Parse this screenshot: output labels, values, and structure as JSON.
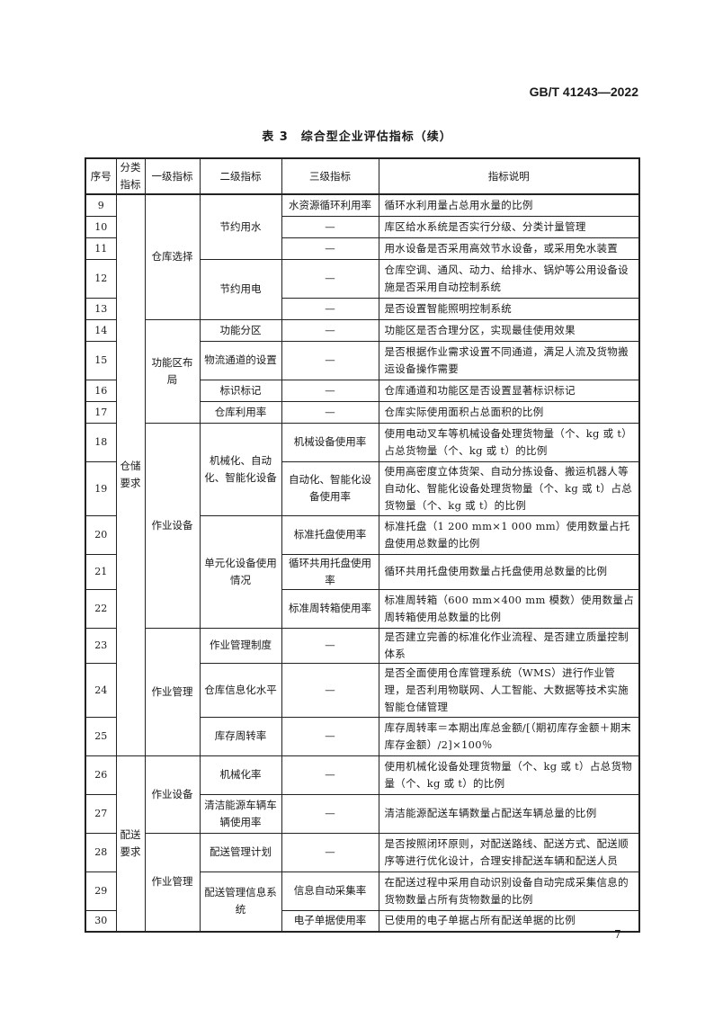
{
  "header": {
    "standard": "GB/T 41243—2022"
  },
  "table": {
    "title": "表 3　综合型企业评估指标（续）",
    "headers": [
      "序号",
      "分类指标",
      "一级指标",
      "二级指标",
      "三级指标",
      "指标说明"
    ],
    "categories": [
      "仓储要求",
      "配送要求"
    ],
    "level1": [
      "仓库选择",
      "功能区布局",
      "作业设备",
      "作业管理",
      "作业设备",
      "作业管理"
    ],
    "level2": [
      "节约用水",
      "节约用电",
      "功能分区",
      "物流通道的设置",
      "标识标记",
      "仓库利用率",
      "机械化、自动化、智能化设备",
      "单元化设备使用情况",
      "作业管理制度",
      "仓库信息化水平",
      "库存周转率",
      "机械化率",
      "清洁能源车辆车辆使用率",
      "配送管理计划",
      "配送管理信息系统"
    ],
    "rows": [
      {
        "no": "9",
        "l3": "水资源循环利用率",
        "desc": "循环水利用量占总用水量的比例"
      },
      {
        "no": "10",
        "l3": "—",
        "desc": "库区给水系统是否实行分级、分类计量管理"
      },
      {
        "no": "11",
        "l3": "—",
        "desc": "用水设备是否采用高效节水设备，或采用免水装置"
      },
      {
        "no": "12",
        "l3": "—",
        "desc": "仓库空调、通风、动力、给排水、锅炉等公用设备设施是否采用自动控制系统"
      },
      {
        "no": "13",
        "l3": "—",
        "desc": "是否设置智能照明控制系统"
      },
      {
        "no": "14",
        "l3": "—",
        "desc": "功能区是否合理分区，实现最佳使用效果"
      },
      {
        "no": "15",
        "l3": "—",
        "desc": "是否根据作业需求设置不同通道，满足人流及货物搬运设备操作需要"
      },
      {
        "no": "16",
        "l3": "—",
        "desc": "仓库通道和功能区是否设置显著标识标记"
      },
      {
        "no": "17",
        "l3": "—",
        "desc": "仓库实际使用面积占总面积的比例"
      },
      {
        "no": "18",
        "l3": "机械设备使用率",
        "desc": "使用电动叉车等机械设备处理货物量（个、kg 或 t）占总货物量（个、kg 或 t）的比例"
      },
      {
        "no": "19",
        "l3": "自动化、智能化设备使用率",
        "desc": "使用高密度立体货架、自动分拣设备、搬运机器人等自动化、智能化设备处理货物量（个、kg 或 t）占总货物量（个、kg 或 t）的比例"
      },
      {
        "no": "20",
        "l3": "标准托盘使用率",
        "desc": "标准托盘（1 200 mm×1 000 mm）使用数量占托盘使用总数量的比例"
      },
      {
        "no": "21",
        "l3": "循环共用托盘使用率",
        "desc": "循环共用托盘使用数量占托盘使用总数量的比例"
      },
      {
        "no": "22",
        "l3": "标准周转箱使用率",
        "desc": "标准周转箱（600 mm×400 mm 模数）使用数量占周转箱使用总数量的比例"
      },
      {
        "no": "23",
        "l3": "—",
        "desc": "是否建立完善的标准化作业流程、是否建立质量控制体系"
      },
      {
        "no": "24",
        "l3": "—",
        "desc": "是否全面使用仓库管理系统（WMS）进行作业管理，是否利用物联网、人工智能、大数据等技术实施智能仓储管理"
      },
      {
        "no": "25",
        "l3": "—",
        "desc": "库存周转率＝本期出库总金额/[（期初库存金额＋期末库存金额）/2]×100％"
      },
      {
        "no": "26",
        "l3": "—",
        "desc": "使用机械化设备处理货物量（个、kg 或 t）占总货物量（个、kg 或 t）的比例"
      },
      {
        "no": "27",
        "l3": "—",
        "desc": "清洁能源配送车辆数量占配送车辆总量的比例"
      },
      {
        "no": "28",
        "l3": "—",
        "desc": "是否按照闭环原则，对配送路线、配送方式、配送顺序等进行优化设计，合理安排配送车辆和配送人员"
      },
      {
        "no": "29",
        "l3": "信息自动采集率",
        "desc": "在配送过程中采用自动识别设备自动完成采集信息的货物数量占所有货物数量的比例"
      },
      {
        "no": "30",
        "l3": "电子单据使用率",
        "desc": "已使用的电子单据占所有配送单据的比例"
      }
    ]
  },
  "footer": {
    "page_number": "7"
  }
}
